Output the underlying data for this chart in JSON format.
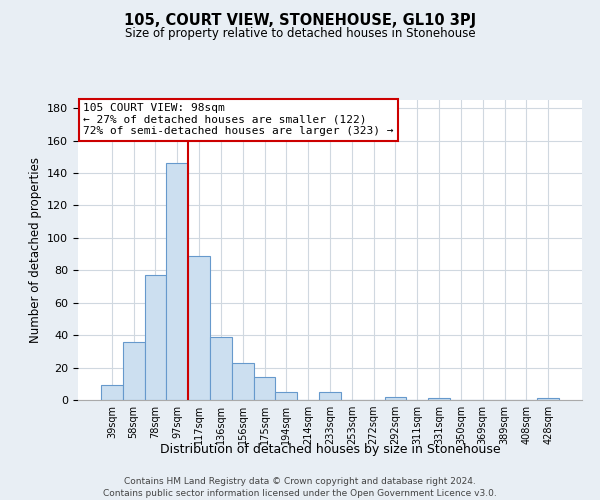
{
  "title": "105, COURT VIEW, STONEHOUSE, GL10 3PJ",
  "subtitle": "Size of property relative to detached houses in Stonehouse",
  "xlabel": "Distribution of detached houses by size in Stonehouse",
  "ylabel": "Number of detached properties",
  "bin_labels": [
    "39sqm",
    "58sqm",
    "78sqm",
    "97sqm",
    "117sqm",
    "136sqm",
    "156sqm",
    "175sqm",
    "194sqm",
    "214sqm",
    "233sqm",
    "253sqm",
    "272sqm",
    "292sqm",
    "311sqm",
    "331sqm",
    "350sqm",
    "369sqm",
    "389sqm",
    "408sqm",
    "428sqm"
  ],
  "bar_values": [
    9,
    36,
    77,
    146,
    89,
    39,
    23,
    14,
    5,
    0,
    5,
    0,
    0,
    2,
    0,
    1,
    0,
    0,
    0,
    0,
    1
  ],
  "bar_color": "#ccdff0",
  "bar_edge_color": "#6699cc",
  "annotation_line1": "105 COURT VIEW: 98sqm",
  "annotation_line2": "← 27% of detached houses are smaller (122)",
  "annotation_line3": "72% of semi-detached houses are larger (323) →",
  "vline_color": "#cc0000",
  "box_edge_color": "#cc0000",
  "ylim": [
    0,
    185
  ],
  "yticks": [
    0,
    20,
    40,
    60,
    80,
    100,
    120,
    140,
    160,
    180
  ],
  "footer_line1": "Contains HM Land Registry data © Crown copyright and database right 2024.",
  "footer_line2": "Contains public sector information licensed under the Open Government Licence v3.0.",
  "bg_color": "#e8eef4",
  "plot_bg_color": "#ffffff",
  "grid_color": "#d0d8e0"
}
